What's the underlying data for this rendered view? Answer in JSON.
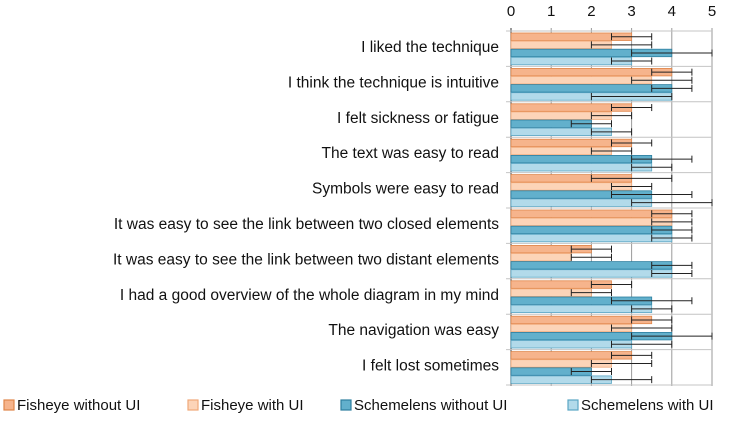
{
  "chart_data": {
    "type": "bar",
    "orientation": "horizontal",
    "xlim": [
      0,
      5
    ],
    "x_ticks": [
      "0",
      "1",
      "2",
      "3",
      "4",
      "5"
    ],
    "grid": true,
    "legend_position": "bottom",
    "categories": [
      "I liked the technique",
      "I think the technique is intuitive",
      "I felt sickness or fatigue",
      "The text was easy to read",
      "Symbols were easy to read",
      "It was easy to see the link between two closed elements",
      "It was easy to see the link between two distant elements",
      "I had a good overview of the whole diagram in my mind",
      "The navigation was easy",
      "I felt lost sometimes"
    ],
    "series": [
      {
        "name": "Fisheye without UI",
        "fill": "#f6b48c",
        "stroke": "#e0864a",
        "values": [
          3.0,
          4.0,
          3.0,
          3.0,
          3.0,
          4.0,
          2.0,
          2.5,
          3.5,
          3.0
        ],
        "errors": [
          [
            2.5,
            3.5
          ],
          [
            3.5,
            4.5
          ],
          [
            2.5,
            3.5
          ],
          [
            2.5,
            3.5
          ],
          [
            2.0,
            4.0
          ],
          [
            3.5,
            4.5
          ],
          [
            1.5,
            2.5
          ],
          [
            2.0,
            3.0
          ],
          [
            3.0,
            4.0
          ],
          [
            2.5,
            3.5
          ]
        ]
      },
      {
        "name": "Fisheye with UI",
        "fill": "#fcd4b8",
        "stroke": "#f0a878",
        "values": [
          2.5,
          3.5,
          2.5,
          2.5,
          3.0,
          4.0,
          1.5,
          2.0,
          3.0,
          2.5
        ],
        "errors": [
          [
            2.0,
            3.5
          ],
          [
            3.0,
            4.5
          ],
          [
            2.0,
            3.0
          ],
          [
            2.0,
            3.0
          ],
          [
            2.5,
            3.5
          ],
          [
            3.5,
            4.5
          ],
          [
            1.5,
            2.5
          ],
          [
            1.5,
            2.5
          ],
          [
            2.5,
            4.0
          ],
          [
            2.0,
            3.5
          ]
        ]
      },
      {
        "name": "Schemelens without UI",
        "fill": "#62b0cc",
        "stroke": "#2e7f9f",
        "values": [
          4.0,
          4.0,
          2.0,
          3.5,
          3.5,
          4.0,
          4.0,
          3.5,
          4.0,
          2.0
        ],
        "errors": [
          [
            3.0,
            5.0
          ],
          [
            3.5,
            4.5
          ],
          [
            1.5,
            2.5
          ],
          [
            3.0,
            4.5
          ],
          [
            2.5,
            4.5
          ],
          [
            3.5,
            4.5
          ],
          [
            3.5,
            4.5
          ],
          [
            2.5,
            4.5
          ],
          [
            3.0,
            5.0
          ],
          [
            1.5,
            2.5
          ]
        ]
      },
      {
        "name": "Schemelens with UI",
        "fill": "#b2daea",
        "stroke": "#5aa6c4",
        "values": [
          3.0,
          4.0,
          2.5,
          3.5,
          3.5,
          4.0,
          4.0,
          3.5,
          3.0,
          2.5
        ],
        "errors": [
          [
            2.5,
            3.5
          ],
          [
            2.0,
            4.0
          ],
          [
            2.0,
            3.0
          ],
          [
            3.0,
            4.0
          ],
          [
            3.0,
            5.0
          ],
          [
            3.5,
            4.5
          ],
          [
            3.5,
            4.5
          ],
          [
            3.0,
            4.0
          ],
          [
            2.5,
            4.0
          ],
          [
            2.0,
            3.5
          ]
        ]
      }
    ]
  }
}
